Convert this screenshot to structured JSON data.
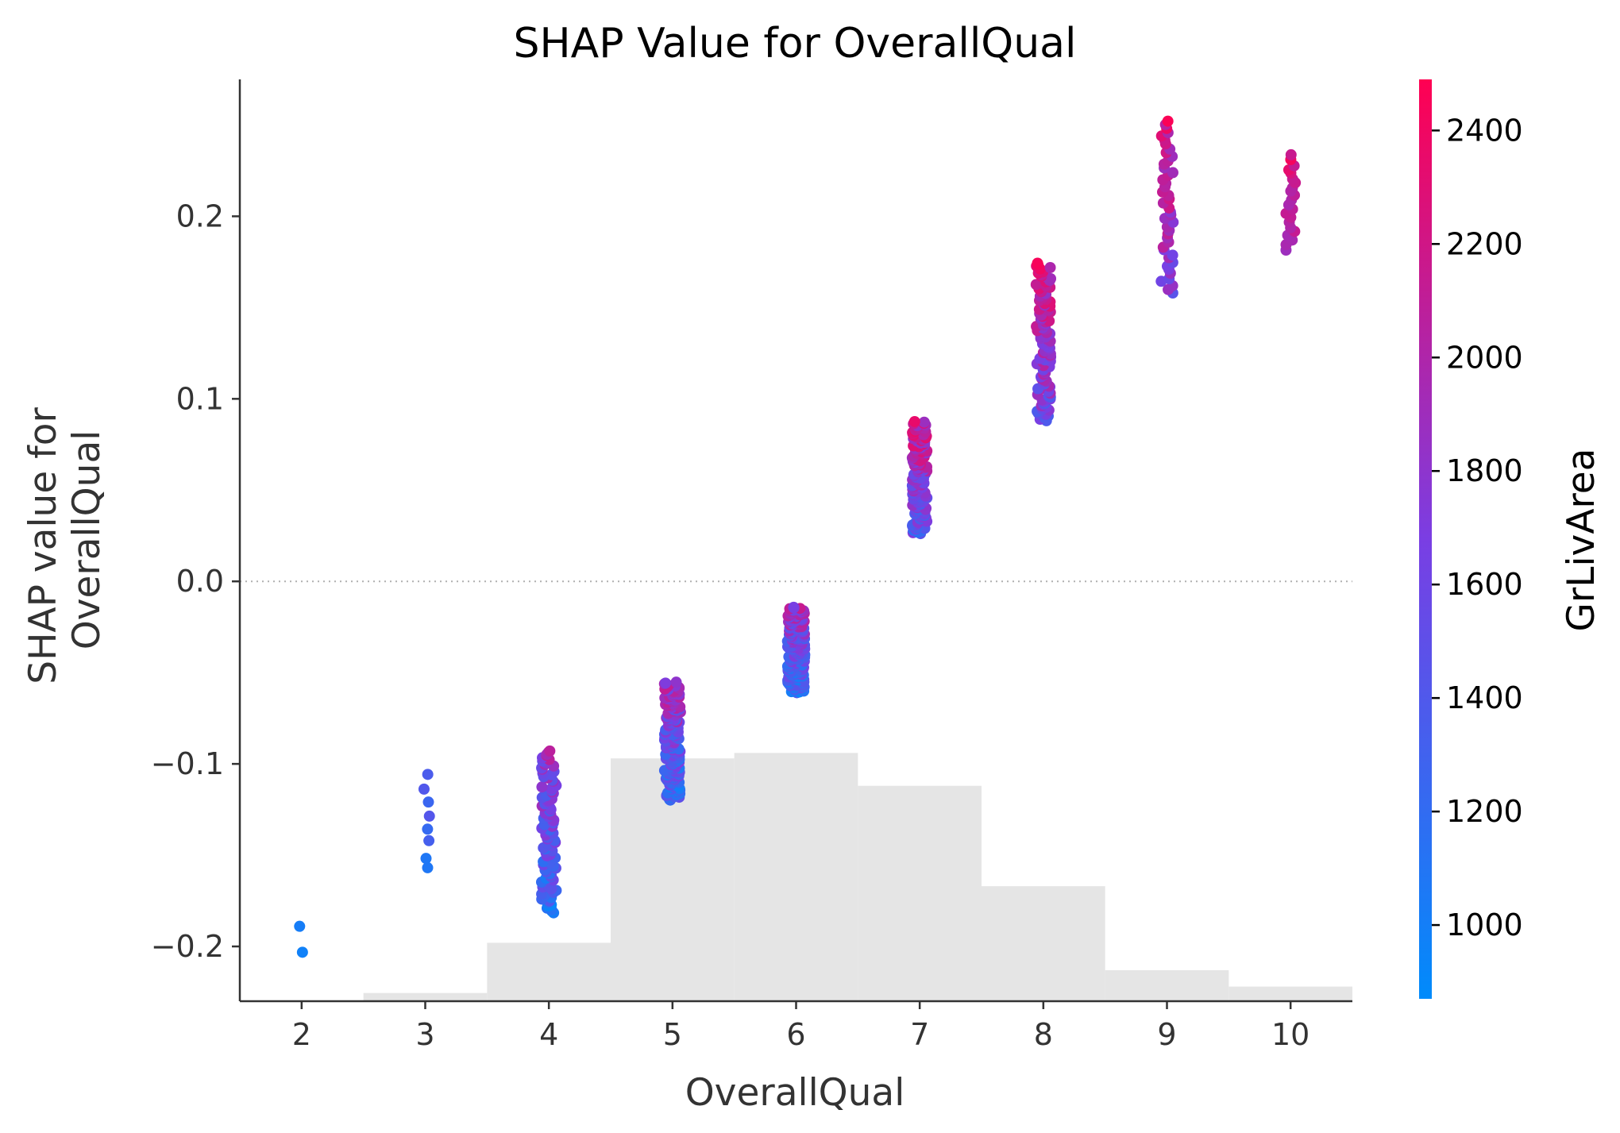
{
  "chart_data": {
    "type": "scatter",
    "title": "SHAP Value for OverallQual",
    "xlabel": "OverallQual",
    "ylabel_lines": [
      "SHAP value for",
      "OverallQual"
    ],
    "xlim": [
      1.5,
      10.5
    ],
    "ylim": [
      -0.23,
      0.275
    ],
    "x_ticks": [
      2,
      3,
      4,
      5,
      6,
      7,
      8,
      9,
      10
    ],
    "y_ticks": [
      {
        "value": 0.2,
        "label": "0.2"
      },
      {
        "value": 0.1,
        "label": "0.1"
      },
      {
        "value": 0.0,
        "label": "0.0"
      },
      {
        "value": -0.1,
        "label": "−0.1"
      },
      {
        "value": -0.2,
        "label": "−0.2"
      }
    ],
    "zero_line": true,
    "grid": false,
    "colorbar": {
      "label": "GrLivArea",
      "range": [
        870,
        2490
      ],
      "ticks": [
        1000,
        1200,
        1400,
        1600,
        1800,
        2000,
        2200,
        2400
      ],
      "colors": {
        "low": "#008bfb",
        "mid": "#7a3ee3",
        "high": "#ff0052"
      }
    },
    "histogram": {
      "color": "#e5e5e5",
      "bins": [
        {
          "x0": 2.5,
          "x1": 3.5,
          "y_top": -0.2255
        },
        {
          "x0": 3.5,
          "x1": 4.5,
          "y_top": -0.198
        },
        {
          "x0": 4.5,
          "x1": 5.5,
          "y_top": -0.097
        },
        {
          "x0": 5.5,
          "x1": 6.5,
          "y_top": -0.094
        },
        {
          "x0": 6.5,
          "x1": 7.5,
          "y_top": -0.112
        },
        {
          "x0": 7.5,
          "x1": 8.5,
          "y_top": -0.167
        },
        {
          "x0": 8.5,
          "x1": 9.5,
          "y_top": -0.213
        },
        {
          "x0": 9.5,
          "x1": 10.5,
          "y_top": -0.222
        }
      ]
    },
    "series": [
      {
        "x": 2,
        "count": 2,
        "ymin": -0.205,
        "ymax": -0.181,
        "cmin": 900,
        "cmax": 1050,
        "spread": 0.05
      },
      {
        "x": 3,
        "count": 8,
        "ymin": -0.16,
        "ymax": -0.1,
        "cmin": 950,
        "cmax": 1650,
        "spread": 0.08
      },
      {
        "x": 4,
        "count": 95,
        "ymin": -0.182,
        "ymax": -0.092,
        "cmin": 880,
        "cmax": 2150,
        "spread": 0.12
      },
      {
        "x": 5,
        "count": 160,
        "ymin": -0.12,
        "ymax": -0.055,
        "cmin": 880,
        "cmax": 2250,
        "spread": 0.13
      },
      {
        "x": 6,
        "count": 170,
        "ymin": -0.061,
        "ymax": -0.014,
        "cmin": 880,
        "cmax": 2200,
        "spread": 0.14
      },
      {
        "x": 7,
        "count": 130,
        "ymin": 0.026,
        "ymax": 0.088,
        "cmin": 1100,
        "cmax": 2490,
        "spread": 0.12
      },
      {
        "x": 8,
        "count": 110,
        "ymin": 0.088,
        "ymax": 0.175,
        "cmin": 1300,
        "cmax": 2490,
        "spread": 0.12
      },
      {
        "x": 9,
        "count": 45,
        "ymin": 0.157,
        "ymax": 0.254,
        "cmin": 1450,
        "cmax": 2490,
        "spread": 0.1
      },
      {
        "x": 10,
        "count": 22,
        "ymin": 0.181,
        "ymax": 0.235,
        "cmin": 1750,
        "cmax": 2490,
        "spread": 0.09
      }
    ]
  }
}
